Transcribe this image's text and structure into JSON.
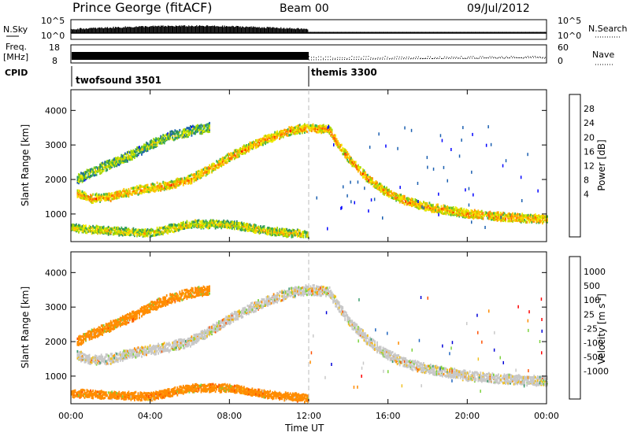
{
  "header": {
    "station": "Prince George (fitACF)",
    "beam": "Beam 00",
    "date": "09/Jul/2012"
  },
  "strips": {
    "nsky_label": "N.Sky",
    "nsky_ticks": [
      "10^5",
      "10^0"
    ],
    "nsearch_label": "N.Search",
    "nsearch_ticks": [
      "10^5",
      "10^0"
    ],
    "freq_label": "Freq.",
    "freq_unit": "[MHz]",
    "freq_ticks": [
      "18",
      "8"
    ],
    "nave_label": "Nave",
    "nave_ticks": [
      "60",
      "0"
    ],
    "cpid_label": "CPID",
    "cpid_segments": [
      {
        "name": "twofsound 3501",
        "start_h": 0,
        "end_h": 12
      },
      {
        "name": "themis 3300",
        "start_h": 12,
        "end_h": 24
      }
    ]
  },
  "axes": {
    "xlabel": "Time UT",
    "x_ticks": [
      "00:00",
      "04:00",
      "08:00",
      "12:00",
      "16:00",
      "20:00",
      "00:00"
    ],
    "xlim_hours": [
      0,
      24
    ],
    "ylabel": "Slant Range [km]",
    "ylim": [
      200,
      4600
    ],
    "y_ticks": [
      1000,
      2000,
      3000,
      4000
    ],
    "marker_hour": 12
  },
  "chart_data": [
    {
      "type": "heatmap",
      "panel": "power",
      "colorbar_label": "Power [dB]",
      "colorbar_ticks": [
        "28",
        "24",
        "20",
        "16",
        "12",
        "8",
        "4"
      ],
      "colorbar_colors": [
        "#ff0000",
        "#ff5a00",
        "#ff8c00",
        "#ffc000",
        "#f0ea00",
        "#a8d800",
        "#3cb050",
        "#2e8f5f",
        "#1a5fb0",
        "#0000ff"
      ],
      "features": [
        {
          "name": "main-arc",
          "points": [
            [
              0.3,
              1600
            ],
            [
              1,
              1450
            ],
            [
              2,
              1500
            ],
            [
              3,
              1650
            ],
            [
              4,
              1750
            ],
            [
              5,
              1850
            ],
            [
              6,
              2000
            ],
            [
              7,
              2300
            ],
            [
              8,
              2650
            ],
            [
              9,
              2950
            ],
            [
              10,
              3200
            ],
            [
              11,
              3400
            ],
            [
              12,
              3500
            ],
            [
              13,
              3450
            ],
            [
              13.5,
              3000
            ],
            [
              14,
              2600
            ],
            [
              15,
              2000
            ],
            [
              16,
              1600
            ],
            [
              17,
              1350
            ],
            [
              18,
              1200
            ],
            [
              20,
              1000
            ],
            [
              22,
              900
            ],
            [
              24,
              850
            ]
          ],
          "width_km": 220,
          "power_db": 22
        },
        {
          "name": "upper-arc",
          "points": [
            [
              0.3,
              2000
            ],
            [
              1,
              2200
            ],
            [
              2,
              2450
            ],
            [
              3,
              2700
            ],
            [
              4,
              3000
            ],
            [
              5,
              3250
            ],
            [
              6,
              3400
            ],
            [
              7,
              3500
            ]
          ],
          "width_km": 250,
          "power_db": 14
        },
        {
          "name": "near-range",
          "points": [
            [
              0,
              600
            ],
            [
              2,
              500
            ],
            [
              4,
              450
            ],
            [
              6,
              700
            ],
            [
              8,
              700
            ],
            [
              10,
              500
            ],
            [
              12,
              400
            ]
          ],
          "width_km": 200,
          "power_db": 18
        }
      ]
    },
    {
      "type": "heatmap",
      "panel": "velocity",
      "colorbar_label": "Velocity [m s",
      "colorbar_label_sup": "-1",
      "colorbar_ticks": [
        "1000",
        "500",
        "100",
        "25",
        "-25",
        "-100",
        "-500",
        "-1000"
      ],
      "colorbar_colors": [
        "#0000d8",
        "#2066c0",
        "#3c9e6e",
        "#7cd23c",
        "#c8c8c8",
        "#c8c8c8",
        "#f0c020",
        "#ff8c00",
        "#ff5000",
        "#ff0000"
      ],
      "features": [
        {
          "name": "main-arc",
          "points": [
            [
              0.3,
              1600
            ],
            [
              1,
              1450
            ],
            [
              2,
              1500
            ],
            [
              3,
              1650
            ],
            [
              4,
              1750
            ],
            [
              5,
              1850
            ],
            [
              6,
              2000
            ],
            [
              7,
              2300
            ],
            [
              8,
              2650
            ],
            [
              9,
              2950
            ],
            [
              10,
              3200
            ],
            [
              11,
              3400
            ],
            [
              12,
              3500
            ],
            [
              13,
              3450
            ],
            [
              13.5,
              3000
            ],
            [
              14,
              2600
            ],
            [
              15,
              2000
            ],
            [
              16,
              1600
            ],
            [
              17,
              1350
            ],
            [
              18,
              1200
            ],
            [
              20,
              1000
            ],
            [
              22,
              900
            ],
            [
              24,
              850
            ]
          ],
          "width_km": 260,
          "velocity": 0
        },
        {
          "name": "upper-arc",
          "points": [
            [
              0.3,
              2000
            ],
            [
              1,
              2200
            ],
            [
              2,
              2450
            ],
            [
              3,
              2700
            ],
            [
              4,
              3000
            ],
            [
              5,
              3250
            ],
            [
              6,
              3400
            ],
            [
              7,
              3500
            ]
          ],
          "width_km": 260,
          "velocity": -150
        },
        {
          "name": "near-range",
          "points": [
            [
              0,
              500
            ],
            [
              2,
              450
            ],
            [
              4,
              400
            ],
            [
              6,
              650
            ],
            [
              8,
              650
            ],
            [
              10,
              450
            ],
            [
              12,
              350
            ]
          ],
          "width_km": 200,
          "velocity": -300
        }
      ]
    }
  ]
}
